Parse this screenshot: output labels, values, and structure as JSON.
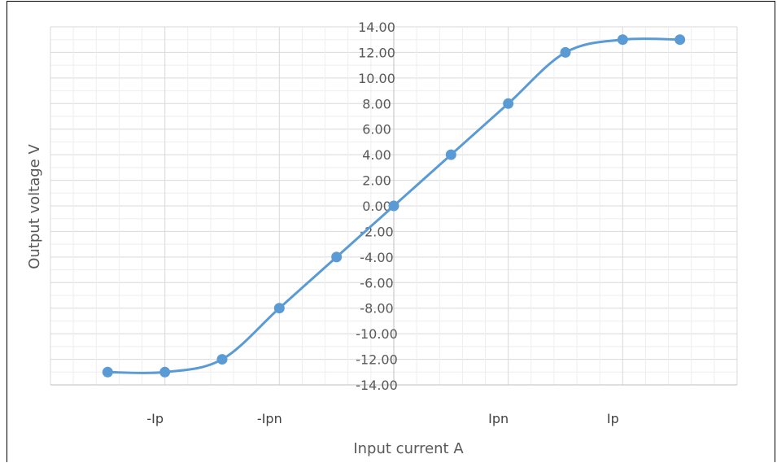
{
  "chart_data": {
    "type": "line",
    "title": "",
    "xlabel": "Input current A",
    "ylabel": "Output voltage V",
    "ylim": [
      -14,
      14
    ],
    "yticks": [
      "14.00",
      "12.00",
      "10.00",
      "8.00",
      "6.00",
      "4.00",
      "2.00",
      "0.00",
      "-2.00",
      "-4.00",
      "-6.00",
      "-8.00",
      "-10.00",
      "-12.00",
      "-14.00"
    ],
    "x_category_labels": [
      {
        "label": "-Ip",
        "x": -4
      },
      {
        "label": "-Ipn",
        "x": -2
      },
      {
        "label": "Ipn",
        "x": 2
      },
      {
        "label": "Ip",
        "x": 4
      }
    ],
    "xlim": [
      -6,
      6
    ],
    "grid": true,
    "smooth": true,
    "series": [
      {
        "color": "#5B9BD5",
        "points": [
          {
            "x": -5,
            "y": -13
          },
          {
            "x": -4,
            "y": -13
          },
          {
            "x": -3,
            "y": -12
          },
          {
            "x": -2,
            "y": -8
          },
          {
            "x": -1,
            "y": -4
          },
          {
            "x": 0,
            "y": 0
          },
          {
            "x": 1,
            "y": 4
          },
          {
            "x": 2,
            "y": 8
          },
          {
            "x": 3,
            "y": 12
          },
          {
            "x": 4,
            "y": 13
          },
          {
            "x": 5,
            "y": 13
          }
        ]
      }
    ]
  }
}
